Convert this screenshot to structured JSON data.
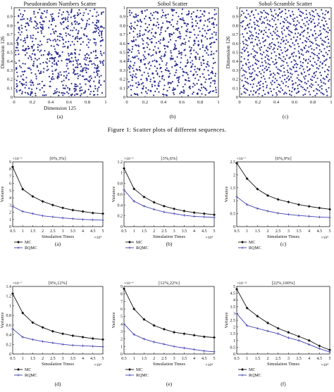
{
  "figure1": {
    "caption": "Figure 1: Scatter plots of different sequences.",
    "panels": [
      {
        "title": "Pseudorandom Numbers Scatter",
        "label": "(a)",
        "xlabel": "Dimension 125",
        "ylabel": "Dimension 126",
        "kind": "random"
      },
      {
        "title": "Sobol Scatter",
        "label": "(b)",
        "xlabel": "",
        "ylabel": "",
        "kind": "sobol"
      },
      {
        "title": "Sobol-Scramble Scatter",
        "label": "(c)",
        "xlabel": "",
        "ylabel": "Dimension 126",
        "kind": "scramble"
      }
    ],
    "x_ticks": [
      "0",
      "0.2",
      "0.4",
      "0.6",
      "0.8",
      "1"
    ],
    "y_ticks": [
      "0",
      "0.1",
      "0.2",
      "0.3",
      "0.4",
      "0.5",
      "0.6",
      "0.7",
      "0.8",
      "0.9",
      "1"
    ],
    "point_color": "#2b2f8f"
  },
  "chart_data": [
    {
      "type": "line",
      "title": "[0%,3%]",
      "label": "(a)",
      "xlabel": "Simulation Times",
      "ylabel": "Variance",
      "x": [
        0.5,
        1,
        1.5,
        2,
        2.5,
        3,
        3.5,
        4,
        4.5,
        5
      ],
      "x_multiplier": "×10⁴",
      "ylim": [
        0,
        9
      ],
      "y_ticks": [
        0,
        1,
        2,
        3,
        4,
        5,
        6,
        7,
        8,
        9
      ],
      "y_multiplier": "×10⁻⁶",
      "series": [
        {
          "name": "MC",
          "values": [
            8.3,
            5.2,
            4.2,
            3.5,
            3.0,
            2.6,
            2.3,
            2.1,
            1.9,
            1.8
          ]
        },
        {
          "name": "RQMC",
          "values": [
            2.8,
            2.1,
            1.8,
            1.5,
            1.35,
            1.2,
            1.1,
            1.0,
            0.95,
            0.9
          ]
        }
      ]
    },
    {
      "type": "line",
      "title": "[3%,6%]",
      "label": "(b)",
      "xlabel": "Simulation Times",
      "ylabel": "Variance",
      "x": [
        0.5,
        1,
        1.5,
        2,
        2.5,
        3,
        3.5,
        4,
        4.5,
        5
      ],
      "x_multiplier": "×10⁴",
      "ylim": [
        0,
        1.2
      ],
      "y_ticks": [
        0,
        0.2,
        0.4,
        0.6,
        0.8,
        1,
        1.2
      ],
      "y_multiplier": "×10⁻⁶",
      "series": [
        {
          "name": "MC",
          "values": [
            1.08,
            0.7,
            0.55,
            0.45,
            0.38,
            0.33,
            0.29,
            0.26,
            0.24,
            0.22
          ]
        },
        {
          "name": "RQMC",
          "values": [
            0.68,
            0.47,
            0.38,
            0.32,
            0.27,
            0.24,
            0.21,
            0.19,
            0.18,
            0.17
          ]
        }
      ]
    },
    {
      "type": "line",
      "title": "[6%,9%]",
      "label": "(c)",
      "xlabel": "Simulation Times",
      "ylabel": "Variance",
      "x": [
        0.5,
        1,
        1.5,
        2,
        2.5,
        3,
        3.5,
        4,
        4.5,
        5
      ],
      "x_multiplier": "×10⁴",
      "ylim": [
        0,
        2.5
      ],
      "y_ticks": [
        0,
        0.5,
        1,
        1.5,
        2,
        2.5
      ],
      "y_multiplier": "×10⁻⁷",
      "series": [
        {
          "name": "MC",
          "values": [
            2.45,
            1.85,
            1.45,
            1.2,
            1.05,
            0.95,
            0.85,
            0.78,
            0.72,
            0.67
          ]
        },
        {
          "name": "RQMC",
          "values": [
            1.15,
            0.85,
            0.7,
            0.6,
            0.52,
            0.47,
            0.43,
            0.4,
            0.37,
            0.35
          ]
        }
      ]
    },
    {
      "type": "line",
      "title": "[9%,12%]",
      "label": "(d)",
      "xlabel": "Simulation Times",
      "ylabel": "Variance",
      "x": [
        0.5,
        1,
        1.5,
        2,
        2.5,
        3,
        3.5,
        4,
        4.5,
        5
      ],
      "x_multiplier": "×10⁴",
      "ylim": [
        0,
        1.4
      ],
      "y_ticks": [
        0,
        0.2,
        0.4,
        0.6,
        0.8,
        1,
        1.2,
        1.4
      ],
      "y_multiplier": "×10⁻⁷",
      "series": [
        {
          "name": "MC",
          "values": [
            1.25,
            0.85,
            0.65,
            0.55,
            0.47,
            0.42,
            0.38,
            0.35,
            0.32,
            0.3
          ]
        },
        {
          "name": "RQMC",
          "values": [
            0.52,
            0.35,
            0.3,
            0.26,
            0.23,
            0.2,
            0.18,
            0.17,
            0.16,
            0.15
          ]
        }
      ]
    },
    {
      "type": "line",
      "title": "[12%,22%]",
      "label": "(e)",
      "xlabel": "Simulation Times",
      "ylabel": "Variance",
      "x": [
        0.5,
        1,
        1.5,
        2,
        2.5,
        3,
        3.5,
        4,
        4.5,
        5
      ],
      "x_multiplier": "×10⁴",
      "ylim": [
        0,
        9
      ],
      "y_ticks": [
        0,
        1,
        2,
        3,
        4,
        5,
        6,
        7,
        8,
        9
      ],
      "y_multiplier": "×10⁻⁹",
      "series": [
        {
          "name": "MC",
          "values": [
            8.7,
            6.0,
            4.6,
            3.8,
            3.3,
            2.9,
            2.7,
            2.5,
            2.3,
            2.2
          ]
        },
        {
          "name": "RQMC",
          "values": [
            4.0,
            2.6,
            2.0,
            1.6,
            1.3,
            1.0,
            0.8,
            0.6,
            0.4,
            0.3
          ]
        }
      ]
    },
    {
      "type": "line",
      "title": "[22%,100%]",
      "label": "(f)",
      "xlabel": "Simulation Times",
      "ylabel": "Variance",
      "x": [
        0.5,
        1,
        1.5,
        2,
        2.5,
        3,
        3.5,
        4,
        4.5,
        5
      ],
      "x_multiplier": "×10⁴",
      "ylim": [
        0,
        5
      ],
      "y_ticks": [
        0,
        0.5,
        1,
        1.5,
        2,
        2.5,
        3,
        3.5,
        4,
        4.5,
        5
      ],
      "y_multiplier": "×10⁻¹¹",
      "series": [
        {
          "name": "MC",
          "values": [
            4.8,
            3.4,
            2.8,
            2.3,
            1.9,
            1.6,
            1.3,
            1.0,
            0.6,
            0.3
          ]
        },
        {
          "name": "RQMC",
          "values": [
            3.0,
            2.1,
            1.9,
            1.7,
            1.5,
            1.2,
            1.0,
            0.7,
            0.4,
            0.15
          ]
        }
      ]
    }
  ],
  "colors": {
    "mc": "#111111",
    "rqmc": "#3f3fb0",
    "axis": "#222222"
  }
}
